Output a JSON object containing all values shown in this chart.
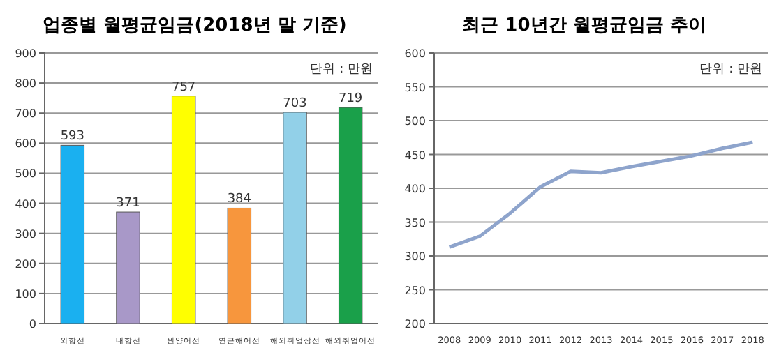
{
  "chart_data": [
    {
      "type": "bar",
      "title": "업종별 월평균임금(2018년 말 기준)",
      "annotations": [
        "단위 : 만원"
      ],
      "categories": [
        "외항선",
        "내항선",
        "원양어선",
        "연근해어선",
        "해외취업상선",
        "해외취업어선"
      ],
      "values": [
        593,
        371,
        757,
        384,
        703,
        719
      ],
      "colors": [
        "#1ab0f0",
        "#a898c8",
        "#ffff00",
        "#f7963d",
        "#92d0e8",
        "#1aa04a"
      ],
      "ylim": [
        0,
        900
      ],
      "yticks": [
        0,
        100,
        200,
        300,
        400,
        500,
        600,
        700,
        800,
        900
      ],
      "grid": "y",
      "data_labels": true
    },
    {
      "type": "line",
      "title": "최근 10년간 월평균임금 추이",
      "annotations": [
        "단위 : 만원"
      ],
      "categories": [
        "2008",
        "2009",
        "2010",
        "2011",
        "2012",
        "2013",
        "2014",
        "2015",
        "2016",
        "2017",
        "2018"
      ],
      "series": [
        {
          "color": "#8ea4cc",
          "values": [
            313,
            329,
            363,
            402,
            425,
            423,
            432,
            440,
            448,
            459,
            468
          ]
        }
      ],
      "ylim": [
        200,
        600
      ],
      "yticks": [
        200,
        250,
        300,
        350,
        400,
        450,
        500,
        550,
        600
      ],
      "grid": "y"
    }
  ]
}
